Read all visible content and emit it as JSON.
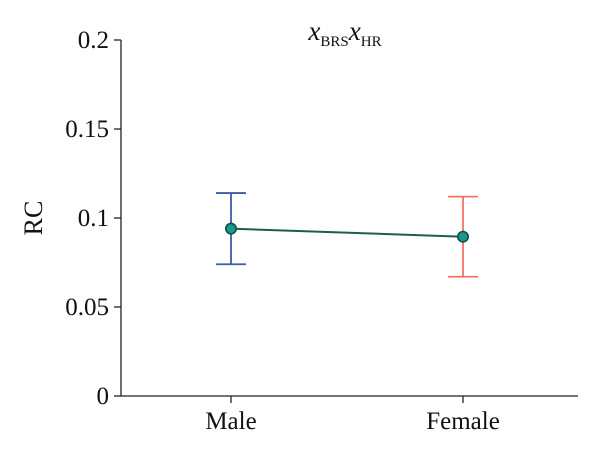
{
  "chart_data": {
    "type": "line",
    "title": {
      "var1": "x",
      "sub1": "BRS",
      "var2": "x",
      "sub2": "HR"
    },
    "xlabel": "",
    "ylabel": "RC",
    "categories": [
      "Male",
      "Female"
    ],
    "values": [
      0.094,
      0.0895
    ],
    "error_bars": [
      {
        "category": "Male",
        "low": 0.074,
        "high": 0.114,
        "color": "#3b5ba5"
      },
      {
        "category": "Female",
        "low": 0.067,
        "high": 0.112,
        "color": "#f07566"
      }
    ],
    "ylim": [
      0,
      0.2
    ],
    "yticks": [
      0,
      0.05,
      0.1,
      0.15,
      0.2
    ],
    "ytick_labels": [
      "0",
      "0.05",
      "0.1",
      "0.15",
      "0.2"
    ],
    "grid": false,
    "colors": {
      "line": "#1f5c55",
      "marker_fill": "#179a8a",
      "marker_stroke": "#0f4f48",
      "axis": "#222222"
    }
  }
}
